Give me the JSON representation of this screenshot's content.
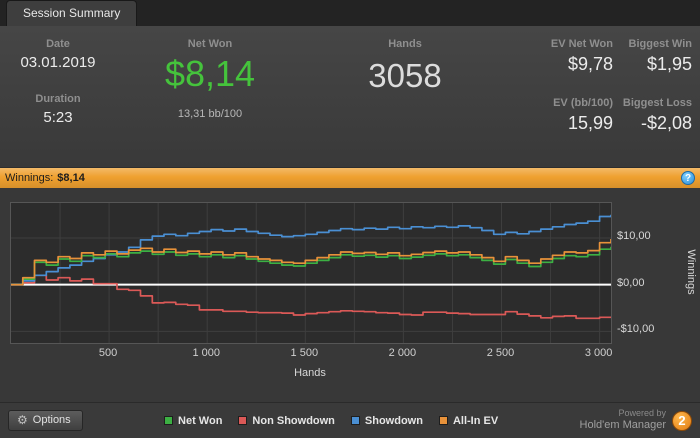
{
  "tab": {
    "title": "Session Summary"
  },
  "stats": {
    "date_label": "Date",
    "date_value": "03.01.2019",
    "duration_label": "Duration",
    "duration_value": "5:23",
    "net_won_label": "Net Won",
    "net_won_value": "$8,14",
    "net_won_sub": "13,31 bb/100",
    "hands_label": "Hands",
    "hands_value": "3058",
    "ev_net_won_label": "EV Net Won",
    "ev_net_won_value": "$9,78",
    "ev_bb_label": "EV (bb/100)",
    "ev_bb_value": "15,99",
    "biggest_win_label": "Biggest Win",
    "biggest_win_value": "$1,95",
    "biggest_loss_label": "Biggest Loss",
    "biggest_loss_value": "-$2,08"
  },
  "winnings_bar": {
    "label": "Winnings:",
    "value": "$8,14",
    "help_icon": "?"
  },
  "chart_data": {
    "type": "line",
    "title": "",
    "xlabel": "Hands",
    "ylabel": "Winnings",
    "xlim": [
      0,
      3058
    ],
    "ylim": [
      -12.5,
      17.5
    ],
    "grid": true,
    "legend_position": "bottom",
    "zero_line": true,
    "x_ticks": [
      {
        "v": 500,
        "label": "500"
      },
      {
        "v": 1000,
        "label": "1 000"
      },
      {
        "v": 1500,
        "label": "1 500"
      },
      {
        "v": 2000,
        "label": "2 000"
      },
      {
        "v": 2500,
        "label": "2 500"
      },
      {
        "v": 3000,
        "label": "3 000"
      }
    ],
    "y_ticks": [
      {
        "v": 10,
        "label": "$10,00"
      },
      {
        "v": 0,
        "label": "$0,00"
      },
      {
        "v": -10,
        "label": "-$10,00"
      }
    ],
    "grid_y": [
      10,
      -10
    ],
    "x": [
      0,
      60,
      120,
      180,
      240,
      300,
      360,
      420,
      480,
      540,
      600,
      660,
      720,
      780,
      840,
      900,
      960,
      1020,
      1080,
      1140,
      1200,
      1260,
      1320,
      1380,
      1440,
      1500,
      1560,
      1620,
      1680,
      1740,
      1800,
      1860,
      1920,
      1980,
      2040,
      2100,
      2160,
      2220,
      2280,
      2340,
      2400,
      2460,
      2520,
      2580,
      2640,
      2700,
      2760,
      2820,
      2880,
      2940,
      3000,
      3058
    ],
    "series": [
      {
        "name": "Net Won",
        "color": "#3cb043",
        "end_value": 8.14,
        "y": [
          0,
          1.2,
          4.8,
          4.2,
          5.5,
          5.0,
          6.2,
          5.8,
          6.6,
          6.0,
          6.8,
          7.2,
          6.5,
          7.0,
          6.3,
          6.6,
          6.0,
          6.4,
          5.8,
          6.2,
          5.5,
          5.0,
          4.6,
          4.2,
          4.0,
          4.6,
          5.2,
          5.8,
          6.4,
          6.1,
          6.3,
          5.9,
          6.2,
          5.6,
          5.9,
          6.3,
          6.6,
          6.2,
          6.4,
          5.8,
          5.2,
          4.4,
          5.4,
          4.6,
          3.9,
          4.8,
          5.6,
          6.2,
          6.0,
          6.4,
          7.6,
          8.14
        ]
      },
      {
        "name": "Non Showdown",
        "color": "#db5957",
        "end_value": -6.86,
        "y": [
          0,
          0.4,
          2.0,
          1.0,
          1.5,
          0.8,
          1.2,
          0.2,
          0.2,
          -1.0,
          -1.2,
          -2.4,
          -3.9,
          -3.8,
          -4.2,
          -4.4,
          -5.4,
          -5.4,
          -5.7,
          -5.7,
          -5.9,
          -6.0,
          -6.0,
          -6.1,
          -6.5,
          -6.2,
          -6.0,
          -5.8,
          -5.6,
          -5.7,
          -5.8,
          -6.0,
          -6.1,
          -6.4,
          -6.5,
          -5.9,
          -5.9,
          -6.1,
          -6.2,
          -6.4,
          -6.4,
          -6.4,
          -5.8,
          -6.3,
          -6.7,
          -7.1,
          -6.8,
          -6.7,
          -7.2,
          -7.2,
          -7.0,
          -6.86
        ]
      },
      {
        "name": "Showdown",
        "color": "#4a8fd3",
        "end_value": 15.0,
        "y": [
          0,
          0.8,
          2.0,
          2.8,
          3.6,
          4.2,
          5.0,
          5.6,
          6.4,
          7.0,
          8.0,
          9.6,
          10.4,
          10.8,
          10.5,
          11.0,
          11.4,
          11.8,
          11.5,
          11.9,
          11.4,
          11.0,
          10.6,
          10.3,
          10.5,
          10.8,
          11.2,
          11.6,
          12.0,
          11.8,
          12.1,
          11.9,
          12.3,
          12.0,
          12.4,
          12.2,
          12.5,
          12.3,
          12.6,
          12.2,
          11.6,
          10.8,
          11.2,
          10.9,
          11.4,
          11.9,
          12.4,
          12.9,
          13.2,
          13.6,
          14.6,
          15.0
        ]
      },
      {
        "name": "All-In EV",
        "color": "#e8923a",
        "end_value": 9.78,
        "y": [
          0,
          1.5,
          5.2,
          4.8,
          6.0,
          5.6,
          6.8,
          6.4,
          7.2,
          6.6,
          7.4,
          7.8,
          7.0,
          7.6,
          6.9,
          7.2,
          6.6,
          7.0,
          6.4,
          6.8,
          6.0,
          5.5,
          5.2,
          4.8,
          4.6,
          5.2,
          5.8,
          6.4,
          7.0,
          6.7,
          6.9,
          6.5,
          6.8,
          6.2,
          6.5,
          6.9,
          7.2,
          6.8,
          7.0,
          6.4,
          5.8,
          5.0,
          6.0,
          5.2,
          4.6,
          5.5,
          6.3,
          7.0,
          6.8,
          7.3,
          9.0,
          9.78
        ]
      }
    ]
  },
  "footer": {
    "options_label": "Options",
    "powered_by": "Powered by",
    "brand": "Hold'em Manager",
    "logo": "2"
  },
  "colors": {
    "accent_green": "#45c33c",
    "bar_orange": "#efa02f",
    "help_blue": "#2f8fd6",
    "logo_orange": "#e07b12",
    "zero_line": "#ffffff",
    "plot_bg": "#2c2c2c",
    "grid_line": "#3e3e3e"
  }
}
